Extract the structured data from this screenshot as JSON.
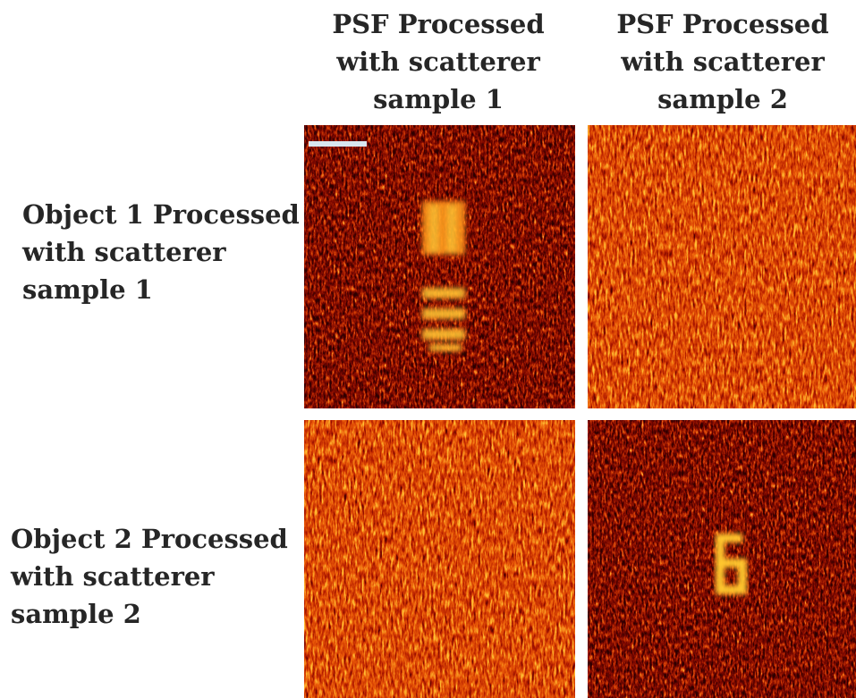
{
  "columns": [
    "PSF Processed\nwith scatterer\nsample 1",
    "PSF Processed\nwith scatterer\nsample 2"
  ],
  "rows": [
    "Object 1 Processed\nwith scatterer\nsample 1",
    "Object 2 Processed\nwith scatterer\nsample 2"
  ]
}
